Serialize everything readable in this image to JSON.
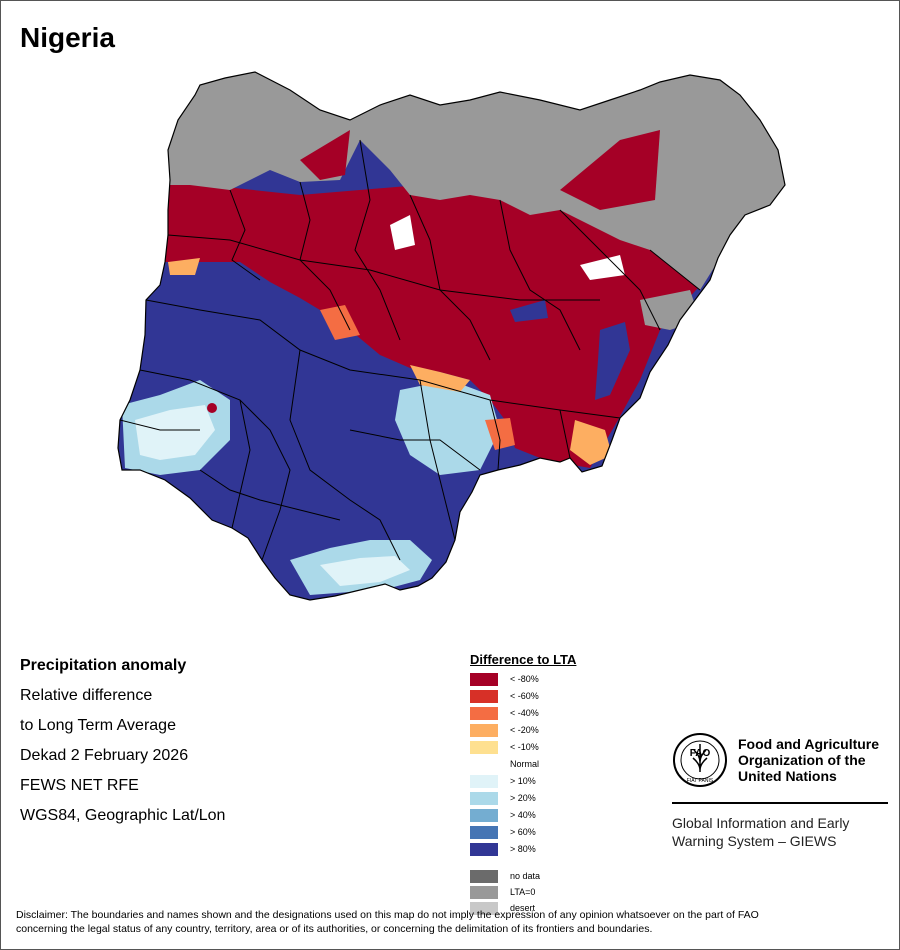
{
  "title": "Nigeria",
  "info": {
    "heading": "Precipitation anomaly",
    "line1": "Relative difference",
    "line2": "to Long Term Average",
    "dekad": "Dekad 2 February 2026",
    "source": "FEWS NET RFE",
    "projection": "WGS84, Geographic Lat/Lon"
  },
  "legend": {
    "title": "Difference to LTA",
    "items": [
      {
        "label": "< -80%",
        "color": "#a50026"
      },
      {
        "label": "< -60%",
        "color": "#d73027"
      },
      {
        "label": "< -40%",
        "color": "#f46d43"
      },
      {
        "label": "< -20%",
        "color": "#fdae61"
      },
      {
        "label": "< -10%",
        "color": "#fee090"
      },
      {
        "label": "Normal",
        "color": "#ffffff"
      },
      {
        "label": "> 10%",
        "color": "#e0f3f8"
      },
      {
        "label": "> 20%",
        "color": "#abd9e9"
      },
      {
        "label": "> 40%",
        "color": "#74add1"
      },
      {
        "label": "> 60%",
        "color": "#4575b4"
      },
      {
        "label": "> 80%",
        "color": "#313695"
      }
    ],
    "extra": [
      {
        "label": "no data",
        "color": "#6b6b6b"
      },
      {
        "label": "LTA=0",
        "color": "#999999"
      },
      {
        "label": "desert",
        "color": "#c8c8c8"
      }
    ]
  },
  "fao": {
    "name_line1": "Food and Agriculture",
    "name_line2": "Organization of the",
    "name_line3": "United Nations",
    "logo_text": "FAO",
    "motto": "FIAT PANIS",
    "system_line1": "Global Information and Early",
    "system_line2": "Warning System – GIEWS"
  },
  "disclaimer_line1": "Disclaimer: The boundaries and names shown and the designations used on this map do not imply the expression of any opinion whatsoever on the part of FAO",
  "disclaimer_line2": "concerning the legal status of any country, territory, area or of its authorities, or concerning the delimitation of its frontiers and boundaries.",
  "map_colors": {
    "lta_zero": "#999999",
    "deficit": "#a50026",
    "surplus": "#313695",
    "border": "#000000"
  }
}
